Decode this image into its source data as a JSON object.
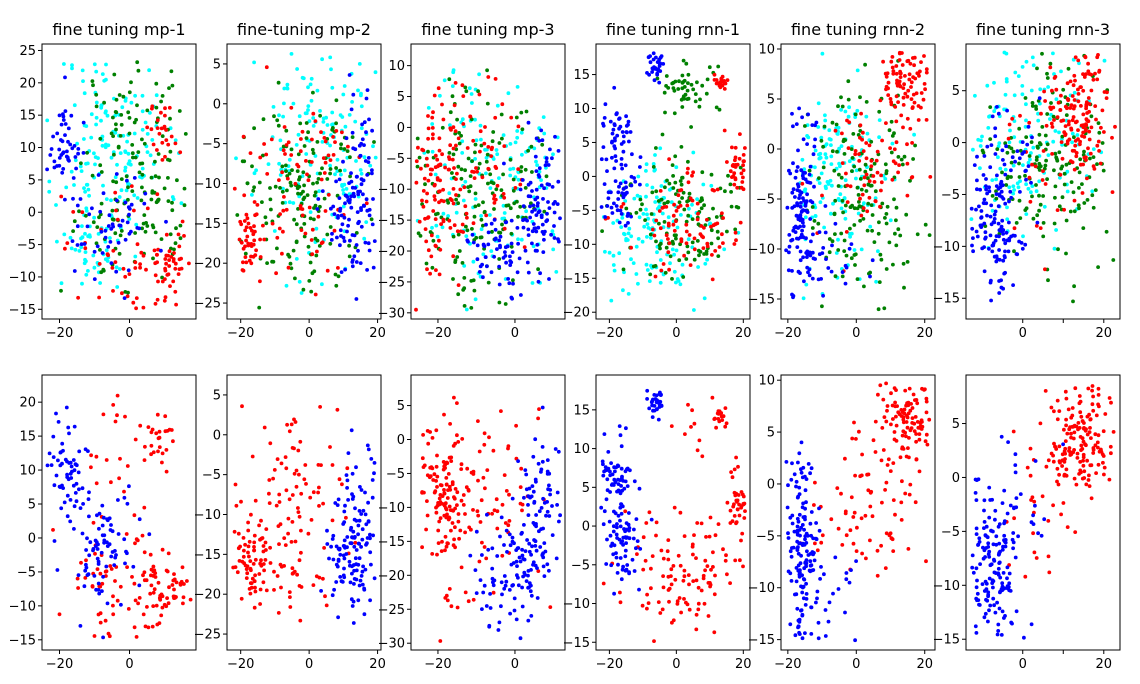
{
  "figure": {
    "type": "scatter-grid"
  },
  "colors": {
    "mp": "#00ffff",
    "mn": "#008000",
    "rp": "#ff0000",
    "rn": "#0000ff"
  },
  "chart_data": [
    {
      "type": "scatter",
      "title": "fine tuning mp-1",
      "xlim": [
        -25,
        19
      ],
      "ylim": [
        -16.5,
        26
      ],
      "xticks": [
        -20,
        0
      ],
      "yticks": [
        -15,
        -10,
        -5,
        0,
        5,
        10,
        15,
        20,
        25
      ],
      "show_title": true,
      "classes": [
        "cyan",
        "green",
        "red",
        "blue"
      ],
      "seed": 11,
      "clusters": [
        {
          "c": "blue",
          "x": -19,
          "y": 10,
          "sx": 2.5,
          "sy": 3.5,
          "n": 50
        },
        {
          "c": "blue",
          "x": -5,
          "y": -2,
          "sx": 5,
          "sy": 4,
          "n": 55
        },
        {
          "c": "red",
          "x": 10,
          "y": -8,
          "sx": 4,
          "sy": 2.5,
          "n": 45
        },
        {
          "c": "red",
          "x": 9,
          "y": 13,
          "sx": 2.5,
          "sy": 3,
          "n": 25
        },
        {
          "c": "red",
          "x": -4,
          "y": -5,
          "sx": 8,
          "sy": 6,
          "n": 45
        },
        {
          "c": "cyan",
          "x": -5,
          "y": 10,
          "sx": 8,
          "sy": 8,
          "n": 150
        },
        {
          "c": "green",
          "x": 2,
          "y": 5,
          "sx": 8,
          "sy": 10,
          "n": 170
        },
        {
          "c": "cyan",
          "x": -10,
          "y": -6,
          "sx": 6,
          "sy": 3,
          "n": 40
        }
      ]
    },
    {
      "type": "scatter",
      "title": "fine-tuning mp-2",
      "xlim": [
        -24,
        21
      ],
      "ylim": [
        -27,
        7.5
      ],
      "xticks": [
        -20,
        0,
        20
      ],
      "yticks": [
        -25,
        -20,
        -15,
        -10,
        -5,
        0,
        5
      ],
      "show_title": true,
      "classes": [
        "cyan",
        "green",
        "red",
        "blue"
      ],
      "seed": 23,
      "clusters": [
        {
          "c": "red",
          "x": -18,
          "y": -17,
          "sx": 2.5,
          "sy": 2,
          "n": 45
        },
        {
          "c": "red",
          "x": -4,
          "y": -10,
          "sx": 9,
          "sy": 7,
          "n": 90
        },
        {
          "c": "blue",
          "x": 12,
          "y": -15,
          "sx": 4,
          "sy": 4,
          "n": 90
        },
        {
          "c": "blue",
          "x": 15,
          "y": -7,
          "sx": 3,
          "sy": 4,
          "n": 30
        },
        {
          "c": "cyan",
          "x": 3,
          "y": -5,
          "sx": 9,
          "sy": 7,
          "n": 160
        },
        {
          "c": "green",
          "x": -3,
          "y": -12,
          "sx": 9,
          "sy": 7,
          "n": 170
        }
      ]
    },
    {
      "type": "scatter",
      "title": "fine tuning mp-3",
      "xlim": [
        -27,
        13
      ],
      "ylim": [
        -31,
        13.5
      ],
      "xticks": [
        -20,
        0
      ],
      "yticks": [
        -30,
        -25,
        -20,
        -15,
        -10,
        -5,
        0,
        5,
        10
      ],
      "show_title": true,
      "classes": [
        "cyan",
        "green",
        "red",
        "blue"
      ],
      "seed": 37,
      "clusters": [
        {
          "c": "red",
          "x": -20,
          "y": -9,
          "sx": 4,
          "sy": 7,
          "n": 110
        },
        {
          "c": "red",
          "x": -8,
          "y": -5,
          "sx": 6,
          "sy": 7,
          "n": 60
        },
        {
          "c": "blue",
          "x": -2,
          "y": -20,
          "sx": 5,
          "sy": 3,
          "n": 70
        },
        {
          "c": "blue",
          "x": 7,
          "y": -13,
          "sx": 4,
          "sy": 6,
          "n": 90
        },
        {
          "c": "cyan",
          "x": -5,
          "y": -8,
          "sx": 10,
          "sy": 9,
          "n": 160
        },
        {
          "c": "green",
          "x": -10,
          "y": -10,
          "sx": 8,
          "sy": 9,
          "n": 170
        }
      ]
    },
    {
      "type": "scatter",
      "title": "fine tuning rnn-1",
      "xlim": [
        -24,
        22
      ],
      "ylim": [
        -21,
        19.5
      ],
      "xticks": [
        -20,
        0,
        20
      ],
      "yticks": [
        -20,
        -15,
        -10,
        -5,
        0,
        5,
        10,
        15
      ],
      "show_title": true,
      "classes": [
        "cyan",
        "green",
        "red",
        "blue"
      ],
      "seed": 41,
      "clusters": [
        {
          "c": "blue",
          "x": -6,
          "y": 16,
          "sx": 1.2,
          "sy": 1,
          "n": 30
        },
        {
          "c": "blue",
          "x": -18,
          "y": 6,
          "sx": 2.5,
          "sy": 3,
          "n": 55
        },
        {
          "c": "blue",
          "x": -17,
          "y": -3,
          "sx": 3,
          "sy": 3,
          "n": 40
        },
        {
          "c": "red",
          "x": 13,
          "y": 14,
          "sx": 1,
          "sy": 0.6,
          "n": 20
        },
        {
          "c": "red",
          "x": 19,
          "y": 2,
          "sx": 2,
          "sy": 3,
          "n": 40
        },
        {
          "c": "red",
          "x": 3,
          "y": -7,
          "sx": 9,
          "sy": 4,
          "n": 90
        },
        {
          "c": "green",
          "x": 3,
          "y": 13,
          "sx": 5,
          "sy": 2,
          "n": 50
        },
        {
          "c": "green",
          "x": 2,
          "y": -6,
          "sx": 10,
          "sy": 5,
          "n": 130
        },
        {
          "c": "cyan",
          "x": -5,
          "y": -8,
          "sx": 9,
          "sy": 5,
          "n": 140
        }
      ]
    },
    {
      "type": "scatter",
      "title": "fine tuning rnn-2",
      "xlim": [
        -22,
        23
      ],
      "ylim": [
        -17,
        10.5
      ],
      "xticks": [
        -20,
        0,
        20
      ],
      "yticks": [
        -15,
        -10,
        -5,
        0,
        5,
        10
      ],
      "show_title": true,
      "classes": [
        "cyan",
        "green",
        "red",
        "blue"
      ],
      "seed": 53,
      "clusters": [
        {
          "c": "blue",
          "x": -16,
          "y": -6,
          "sx": 2.5,
          "sy": 5,
          "n": 140
        },
        {
          "c": "blue",
          "x": -6,
          "y": -11,
          "sx": 5,
          "sy": 3,
          "n": 20
        },
        {
          "c": "red",
          "x": 15,
          "y": 7,
          "sx": 4,
          "sy": 2.5,
          "n": 100
        },
        {
          "c": "red",
          "x": 5,
          "y": -2,
          "sx": 9,
          "sy": 4,
          "n": 70
        },
        {
          "c": "cyan",
          "x": -5,
          "y": -3,
          "sx": 8,
          "sy": 5,
          "n": 150
        },
        {
          "c": "green",
          "x": 3,
          "y": -5,
          "sx": 9,
          "sy": 6,
          "n": 170
        }
      ]
    },
    {
      "type": "scatter",
      "title": "fine tuning rnn-3",
      "xlim": [
        -14,
        24
      ],
      "ylim": [
        -17,
        9.5
      ],
      "xticks": [
        0,
        10,
        20
      ],
      "yticks": [
        -15,
        -10,
        -5,
        0,
        5
      ],
      "xtick_labels": [
        "0",
        "",
        "20"
      ],
      "show_title": true,
      "classes": [
        "cyan",
        "green",
        "red",
        "blue"
      ],
      "seed": 67,
      "clusters": [
        {
          "c": "blue",
          "x": -7,
          "y": -8,
          "sx": 3,
          "sy": 4,
          "n": 130
        },
        {
          "c": "blue",
          "x": -2,
          "y": -2,
          "sx": 4,
          "sy": 3,
          "n": 30
        },
        {
          "c": "red",
          "x": 14,
          "y": 3,
          "sx": 4,
          "sy": 3,
          "n": 140
        },
        {
          "c": "red",
          "x": 5,
          "y": -2,
          "sx": 6,
          "sy": 4,
          "n": 30
        },
        {
          "c": "cyan",
          "x": 0,
          "y": 0,
          "sx": 8,
          "sy": 5,
          "n": 150
        },
        {
          "c": "green",
          "x": 6,
          "y": -3,
          "sx": 7,
          "sy": 5,
          "n": 170
        }
      ]
    },
    {
      "type": "scatter",
      "title": "",
      "xlim": [
        -25,
        19
      ],
      "ylim": [
        -16.5,
        24
      ],
      "xticks": [
        -20,
        0
      ],
      "yticks": [
        -15,
        -10,
        -5,
        0,
        5,
        10,
        15,
        20
      ],
      "show_title": false,
      "classes": [
        "red",
        "blue"
      ],
      "seed": 71,
      "clusters": [
        {
          "c": "blue",
          "x": -18,
          "y": 11,
          "sx": 3,
          "sy": 4,
          "n": 60
        },
        {
          "c": "blue",
          "x": -8,
          "y": -2,
          "sx": 5,
          "sy": 4,
          "n": 80
        },
        {
          "c": "red",
          "x": 10,
          "y": -8,
          "sx": 4,
          "sy": 2.5,
          "n": 60
        },
        {
          "c": "red",
          "x": 8,
          "y": 14,
          "sx": 3,
          "sy": 3,
          "n": 25
        },
        {
          "c": "red",
          "x": -4,
          "y": -7,
          "sx": 8,
          "sy": 5,
          "n": 60
        },
        {
          "c": "red",
          "x": -3,
          "y": 12,
          "sx": 6,
          "sy": 6,
          "n": 20
        }
      ]
    },
    {
      "type": "scatter",
      "title": "",
      "xlim": [
        -24,
        21
      ],
      "ylim": [
        -27,
        7.5
      ],
      "xticks": [
        -20,
        0,
        20
      ],
      "yticks": [
        -25,
        -20,
        -15,
        -10,
        -5,
        0,
        5
      ],
      "show_title": false,
      "classes": [
        "red",
        "blue"
      ],
      "seed": 83,
      "clusters": [
        {
          "c": "red",
          "x": -16,
          "y": -16,
          "sx": 3,
          "sy": 3,
          "n": 70
        },
        {
          "c": "red",
          "x": -5,
          "y": -10,
          "sx": 8,
          "sy": 7,
          "n": 110
        },
        {
          "c": "blue",
          "x": 12,
          "y": -15,
          "sx": 4,
          "sy": 4,
          "n": 110
        },
        {
          "c": "blue",
          "x": 15,
          "y": -6,
          "sx": 3,
          "sy": 4,
          "n": 30
        }
      ]
    },
    {
      "type": "scatter",
      "title": "",
      "xlim": [
        -27,
        13
      ],
      "ylim": [
        -31,
        9.5
      ],
      "xticks": [
        -20,
        0
      ],
      "yticks": [
        -30,
        -25,
        -20,
        -15,
        -10,
        -5,
        0,
        5
      ],
      "show_title": false,
      "classes": [
        "red",
        "blue"
      ],
      "seed": 97,
      "clusters": [
        {
          "c": "red",
          "x": -19,
          "y": -9,
          "sx": 4,
          "sy": 7,
          "n": 130
        },
        {
          "c": "red",
          "x": -8,
          "y": -8,
          "sx": 7,
          "sy": 7,
          "n": 70
        },
        {
          "c": "blue",
          "x": -1,
          "y": -20,
          "sx": 5,
          "sy": 4,
          "n": 80
        },
        {
          "c": "blue",
          "x": 7,
          "y": -12,
          "sx": 4,
          "sy": 6,
          "n": 100
        }
      ]
    },
    {
      "type": "scatter",
      "title": "",
      "xlim": [
        -24,
        22
      ],
      "ylim": [
        -16,
        19.5
      ],
      "xticks": [
        -20,
        0,
        20
      ],
      "yticks": [
        -15,
        -10,
        -5,
        0,
        5,
        10,
        15
      ],
      "show_title": false,
      "classes": [
        "red",
        "blue"
      ],
      "seed": 101,
      "clusters": [
        {
          "c": "blue",
          "x": -6,
          "y": 16,
          "sx": 1.2,
          "sy": 1,
          "n": 30
        },
        {
          "c": "blue",
          "x": -18,
          "y": 6,
          "sx": 2.5,
          "sy": 3,
          "n": 70
        },
        {
          "c": "blue",
          "x": -17,
          "y": -3,
          "sx": 3,
          "sy": 3,
          "n": 60
        },
        {
          "c": "red",
          "x": 13,
          "y": 14,
          "sx": 1,
          "sy": 0.6,
          "n": 20
        },
        {
          "c": "red",
          "x": 19,
          "y": 3,
          "sx": 2,
          "sy": 3,
          "n": 50
        },
        {
          "c": "red",
          "x": 3,
          "y": -6,
          "sx": 9,
          "sy": 4,
          "n": 110
        },
        {
          "c": "red",
          "x": 5,
          "y": 12,
          "sx": 3,
          "sy": 2,
          "n": 10
        }
      ]
    },
    {
      "type": "scatter",
      "title": "",
      "xlim": [
        -22,
        23
      ],
      "ylim": [
        -16,
        10.5
      ],
      "xticks": [
        -20,
        0,
        20
      ],
      "yticks": [
        -15,
        -10,
        -5,
        0,
        5,
        10
      ],
      "show_title": false,
      "classes": [
        "red",
        "blue"
      ],
      "seed": 113,
      "clusters": [
        {
          "c": "blue",
          "x": -16,
          "y": -6,
          "sx": 2.5,
          "sy": 5,
          "n": 160
        },
        {
          "c": "blue",
          "x": -6,
          "y": -11,
          "sx": 5,
          "sy": 3,
          "n": 20
        },
        {
          "c": "red",
          "x": 15,
          "y": 7,
          "sx": 4,
          "sy": 2.5,
          "n": 120
        },
        {
          "c": "red",
          "x": 5,
          "y": -2,
          "sx": 9,
          "sy": 4,
          "n": 80
        }
      ]
    },
    {
      "type": "scatter",
      "title": "",
      "xlim": [
        -14,
        24
      ],
      "ylim": [
        -16,
        9.5
      ],
      "xticks": [
        0,
        10,
        20
      ],
      "yticks": [
        -15,
        -10,
        -5,
        0,
        5
      ],
      "xtick_labels": [
        "0",
        "",
        "20"
      ],
      "show_title": false,
      "classes": [
        "red",
        "blue"
      ],
      "seed": 127,
      "clusters": [
        {
          "c": "blue",
          "x": -7,
          "y": -8,
          "sx": 3,
          "sy": 4,
          "n": 150
        },
        {
          "c": "blue",
          "x": -2,
          "y": -3,
          "sx": 4,
          "sy": 3,
          "n": 30
        },
        {
          "c": "red",
          "x": 14,
          "y": 3,
          "sx": 4,
          "sy": 3,
          "n": 160
        },
        {
          "c": "red",
          "x": 5,
          "y": -2,
          "sx": 6,
          "sy": 4,
          "n": 30
        }
      ]
    }
  ]
}
